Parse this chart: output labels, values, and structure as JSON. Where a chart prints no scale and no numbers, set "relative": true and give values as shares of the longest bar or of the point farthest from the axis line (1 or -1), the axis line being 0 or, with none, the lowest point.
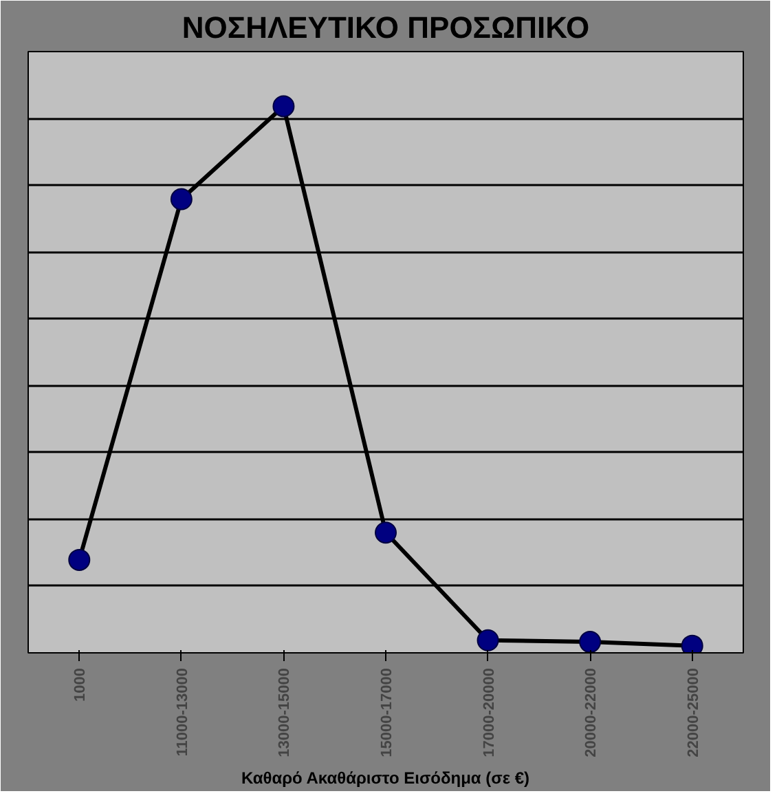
{
  "chart_data": {
    "type": "line",
    "title": "ΝΟΣΗΛΕΥΤΙΚΟ ΠΡΟΣΩΠΙΚΟ",
    "xlabel": "Καθαρό Ακαθάριστο Εισόδημα (σε €)",
    "categories": [
      "1000",
      "11000-13000",
      "13000-15000",
      "15000-17000",
      "17000-20000",
      "20000-22000",
      "22000-25000"
    ],
    "relative": true,
    "series": [
      {
        "color": "#000080",
        "values": [
          0.17,
          0.83,
          1,
          0.22,
          0.023,
          0.02,
          0.013
        ]
      }
    ],
    "marker": "circle",
    "line_style": "solid",
    "grid": true
  }
}
